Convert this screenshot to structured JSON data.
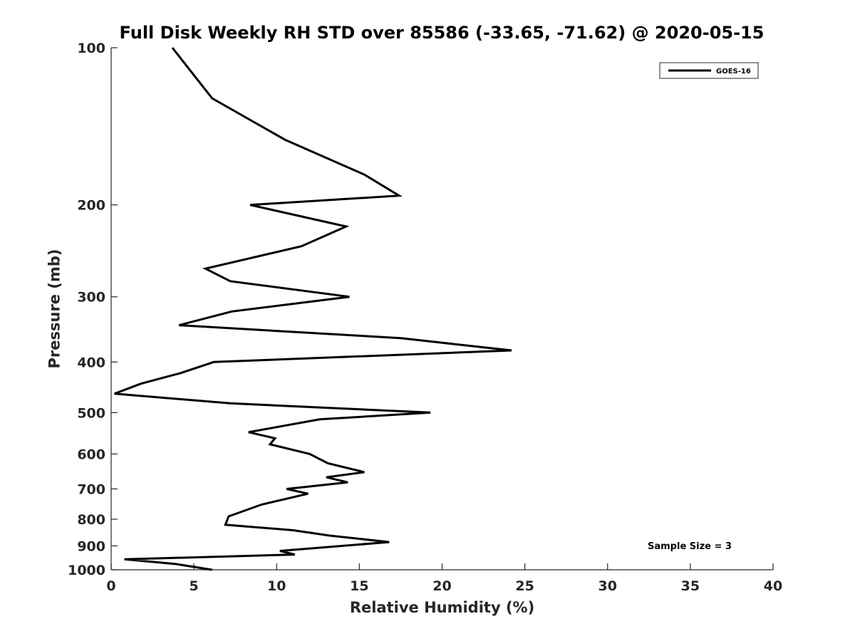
{
  "chart_data": {
    "type": "line",
    "title": "Full Disk Weekly RH STD over 85586 (-33.65, -71.62) @ 2020-05-15",
    "xlabel": "Relative Humidity (%)",
    "ylabel": "Pressure (mb)",
    "xlim": [
      0,
      40
    ],
    "ylim": [
      100,
      1000
    ],
    "y_scale": "log",
    "y_reversed": true,
    "x_ticks": [
      0,
      5,
      10,
      15,
      20,
      25,
      30,
      35,
      40
    ],
    "y_ticks": [
      100,
      200,
      300,
      400,
      500,
      600,
      700,
      800,
      900,
      1000
    ],
    "grid": false,
    "legend_position": "top-right",
    "annotation": "Sample Size = 3",
    "line_color": "#000000",
    "series": [
      {
        "name": "GOES-16",
        "points": [
          [
            3.7,
            100
          ],
          [
            6.1,
            125
          ],
          [
            10.5,
            150
          ],
          [
            15.3,
            175
          ],
          [
            17.4,
            192
          ],
          [
            8.4,
            200
          ],
          [
            14.2,
            220
          ],
          [
            11.5,
            240
          ],
          [
            5.7,
            265
          ],
          [
            7.2,
            280
          ],
          [
            14.4,
            300
          ],
          [
            7.3,
            320
          ],
          [
            4.1,
            340
          ],
          [
            17.5,
            360
          ],
          [
            24.2,
            380
          ],
          [
            6.2,
            400
          ],
          [
            4.2,
            420
          ],
          [
            1.8,
            440
          ],
          [
            0.2,
            460
          ],
          [
            7.2,
            480
          ],
          [
            19.3,
            500
          ],
          [
            12.6,
            515
          ],
          [
            8.3,
            545
          ],
          [
            9.9,
            560
          ],
          [
            9.6,
            575
          ],
          [
            12.0,
            600
          ],
          [
            13.1,
            625
          ],
          [
            15.3,
            650
          ],
          [
            13.0,
            665
          ],
          [
            14.3,
            680
          ],
          [
            10.6,
            700
          ],
          [
            11.9,
            715
          ],
          [
            9.1,
            750
          ],
          [
            7.1,
            790
          ],
          [
            6.9,
            820
          ],
          [
            11.0,
            840
          ],
          [
            13.2,
            860
          ],
          [
            16.8,
            885
          ],
          [
            10.2,
            920
          ],
          [
            11.1,
            935
          ],
          [
            0.8,
            955
          ],
          [
            3.9,
            975
          ],
          [
            6.1,
            1000
          ]
        ]
      }
    ]
  }
}
